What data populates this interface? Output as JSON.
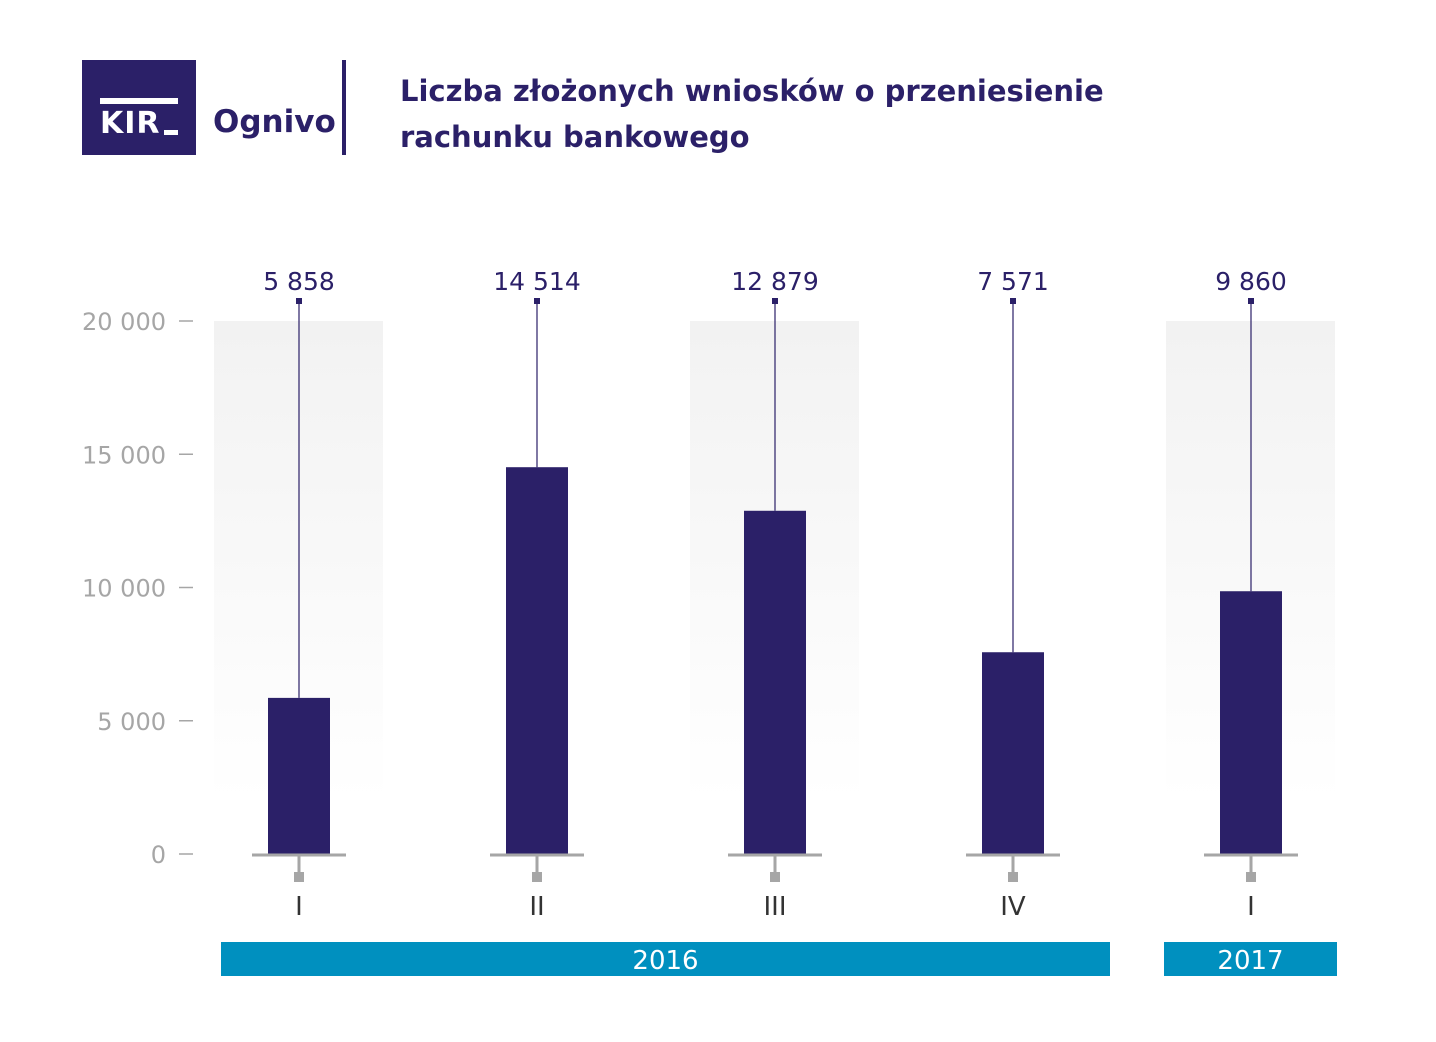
{
  "header": {
    "logo_text": "KIR",
    "brand": "Ognivo",
    "title_line1": "Liczba złożonych wniosków o przeniesienie",
    "title_line2": "rachunku bankowego"
  },
  "colors": {
    "bar": "#2b2068",
    "year_band": "#0090bf",
    "axis": "#a6a6a6",
    "shade": "#f2f2f2"
  },
  "chart_data": {
    "type": "bar",
    "title": "Liczba złożonych wniosków o przeniesienie rachunku bankowego",
    "categories": [
      "I",
      "II",
      "III",
      "IV",
      "I"
    ],
    "values": [
      5858,
      14514,
      12879,
      7571,
      9860
    ],
    "value_labels": [
      "5 858",
      "14 514",
      "12 879",
      "7 571",
      "9 860"
    ],
    "groups": [
      {
        "label": "2016",
        "categories": [
          0,
          1,
          2,
          3
        ]
      },
      {
        "label": "2017",
        "categories": [
          4
        ]
      }
    ],
    "yticks": [
      0,
      5000,
      10000,
      15000,
      20000
    ],
    "ytick_labels": [
      "0",
      "5 000",
      "10 000",
      "15 000",
      "20 000"
    ],
    "ylim": [
      0,
      20000
    ],
    "xlabel": "",
    "ylabel": "",
    "grid": false
  }
}
